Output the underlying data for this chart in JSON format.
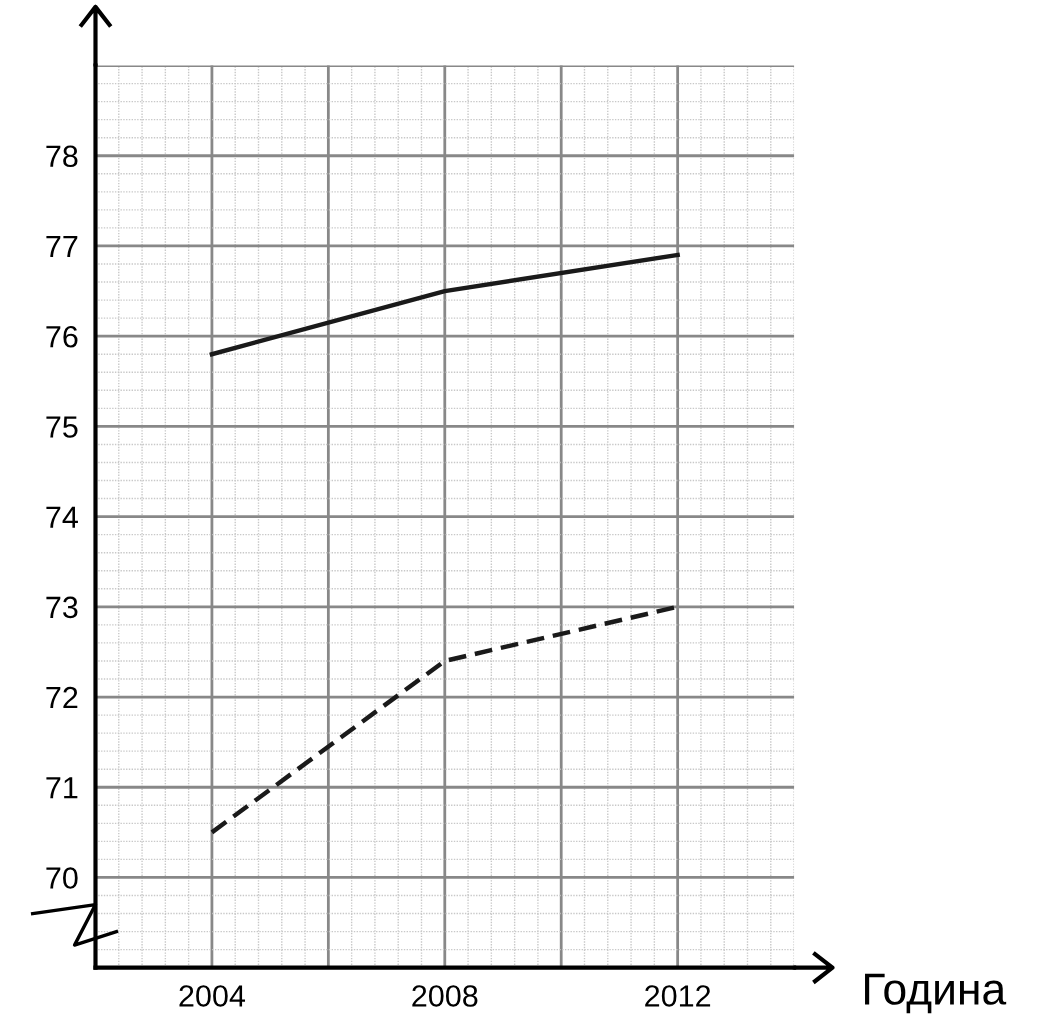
{
  "chart_data": {
    "type": "line",
    "xlabel": "Година",
    "x": [
      2004,
      2008,
      2012
    ],
    "series": [
      {
        "color": "#1a1a1a",
        "values": [
          75.8,
          76.5,
          76.9
        ],
        "line_style": "solid"
      },
      {
        "color": "#1a1a1a",
        "values": [
          70.5,
          72.4,
          73.0
        ],
        "line_style": "dashed"
      }
    ],
    "xlim": [
      2002,
      2014
    ],
    "xticks": [
      2004,
      {
        "value": 2006,
        "label": null
      },
      2008,
      {
        "value": 2010,
        "label": null
      },
      2012
    ],
    "ylim": [
      69,
      79
    ],
    "yticks": [
      {
        "value": 69,
        "label": null
      },
      70,
      71,
      72,
      73,
      74,
      75,
      76,
      77,
      78,
      {
        "value": 79,
        "label": null
      }
    ],
    "grid": true,
    "marker": "none"
  }
}
